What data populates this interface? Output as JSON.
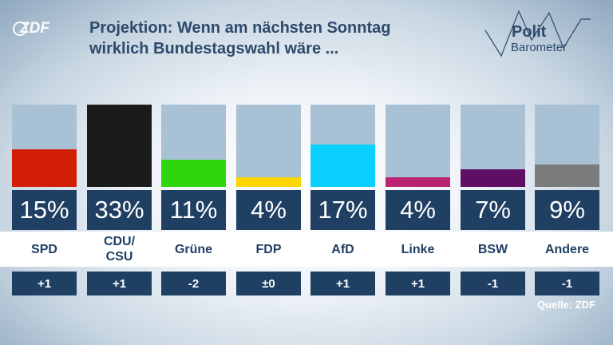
{
  "header": {
    "logo_text": "ZDF",
    "title_line1": "Projektion: Wenn am nächsten Sonntag",
    "title_line2": "wirklich Bundestagswahl wäre ...",
    "brand_line1": "Polit",
    "brand_line2": "Barometer"
  },
  "chart_data": {
    "type": "bar",
    "title": "Projektion: Wenn am nächsten Sonntag wirklich Bundestagswahl wäre ...",
    "ylim": [
      0,
      33
    ],
    "grid": false,
    "categories": [
      "SPD",
      "CDU/\nCSU",
      "Grüne",
      "FDP",
      "AfD",
      "Linke",
      "BSW",
      "Andere"
    ],
    "values": [
      15,
      33,
      11,
      4,
      17,
      4,
      7,
      9
    ],
    "value_labels": [
      "15%",
      "33%",
      "11%",
      "4%",
      "17%",
      "4%",
      "7%",
      "9%"
    ],
    "changes": [
      "+1",
      "+1",
      "-2",
      "±0",
      "+1",
      "+1",
      "-1",
      "-1"
    ],
    "colors": [
      "#d11e05",
      "#1b1b1b",
      "#2fd60c",
      "#ffd500",
      "#0ad0ff",
      "#b9236f",
      "#5e0e63",
      "#7a7b7d"
    ]
  },
  "source": "Quelle: ZDF"
}
